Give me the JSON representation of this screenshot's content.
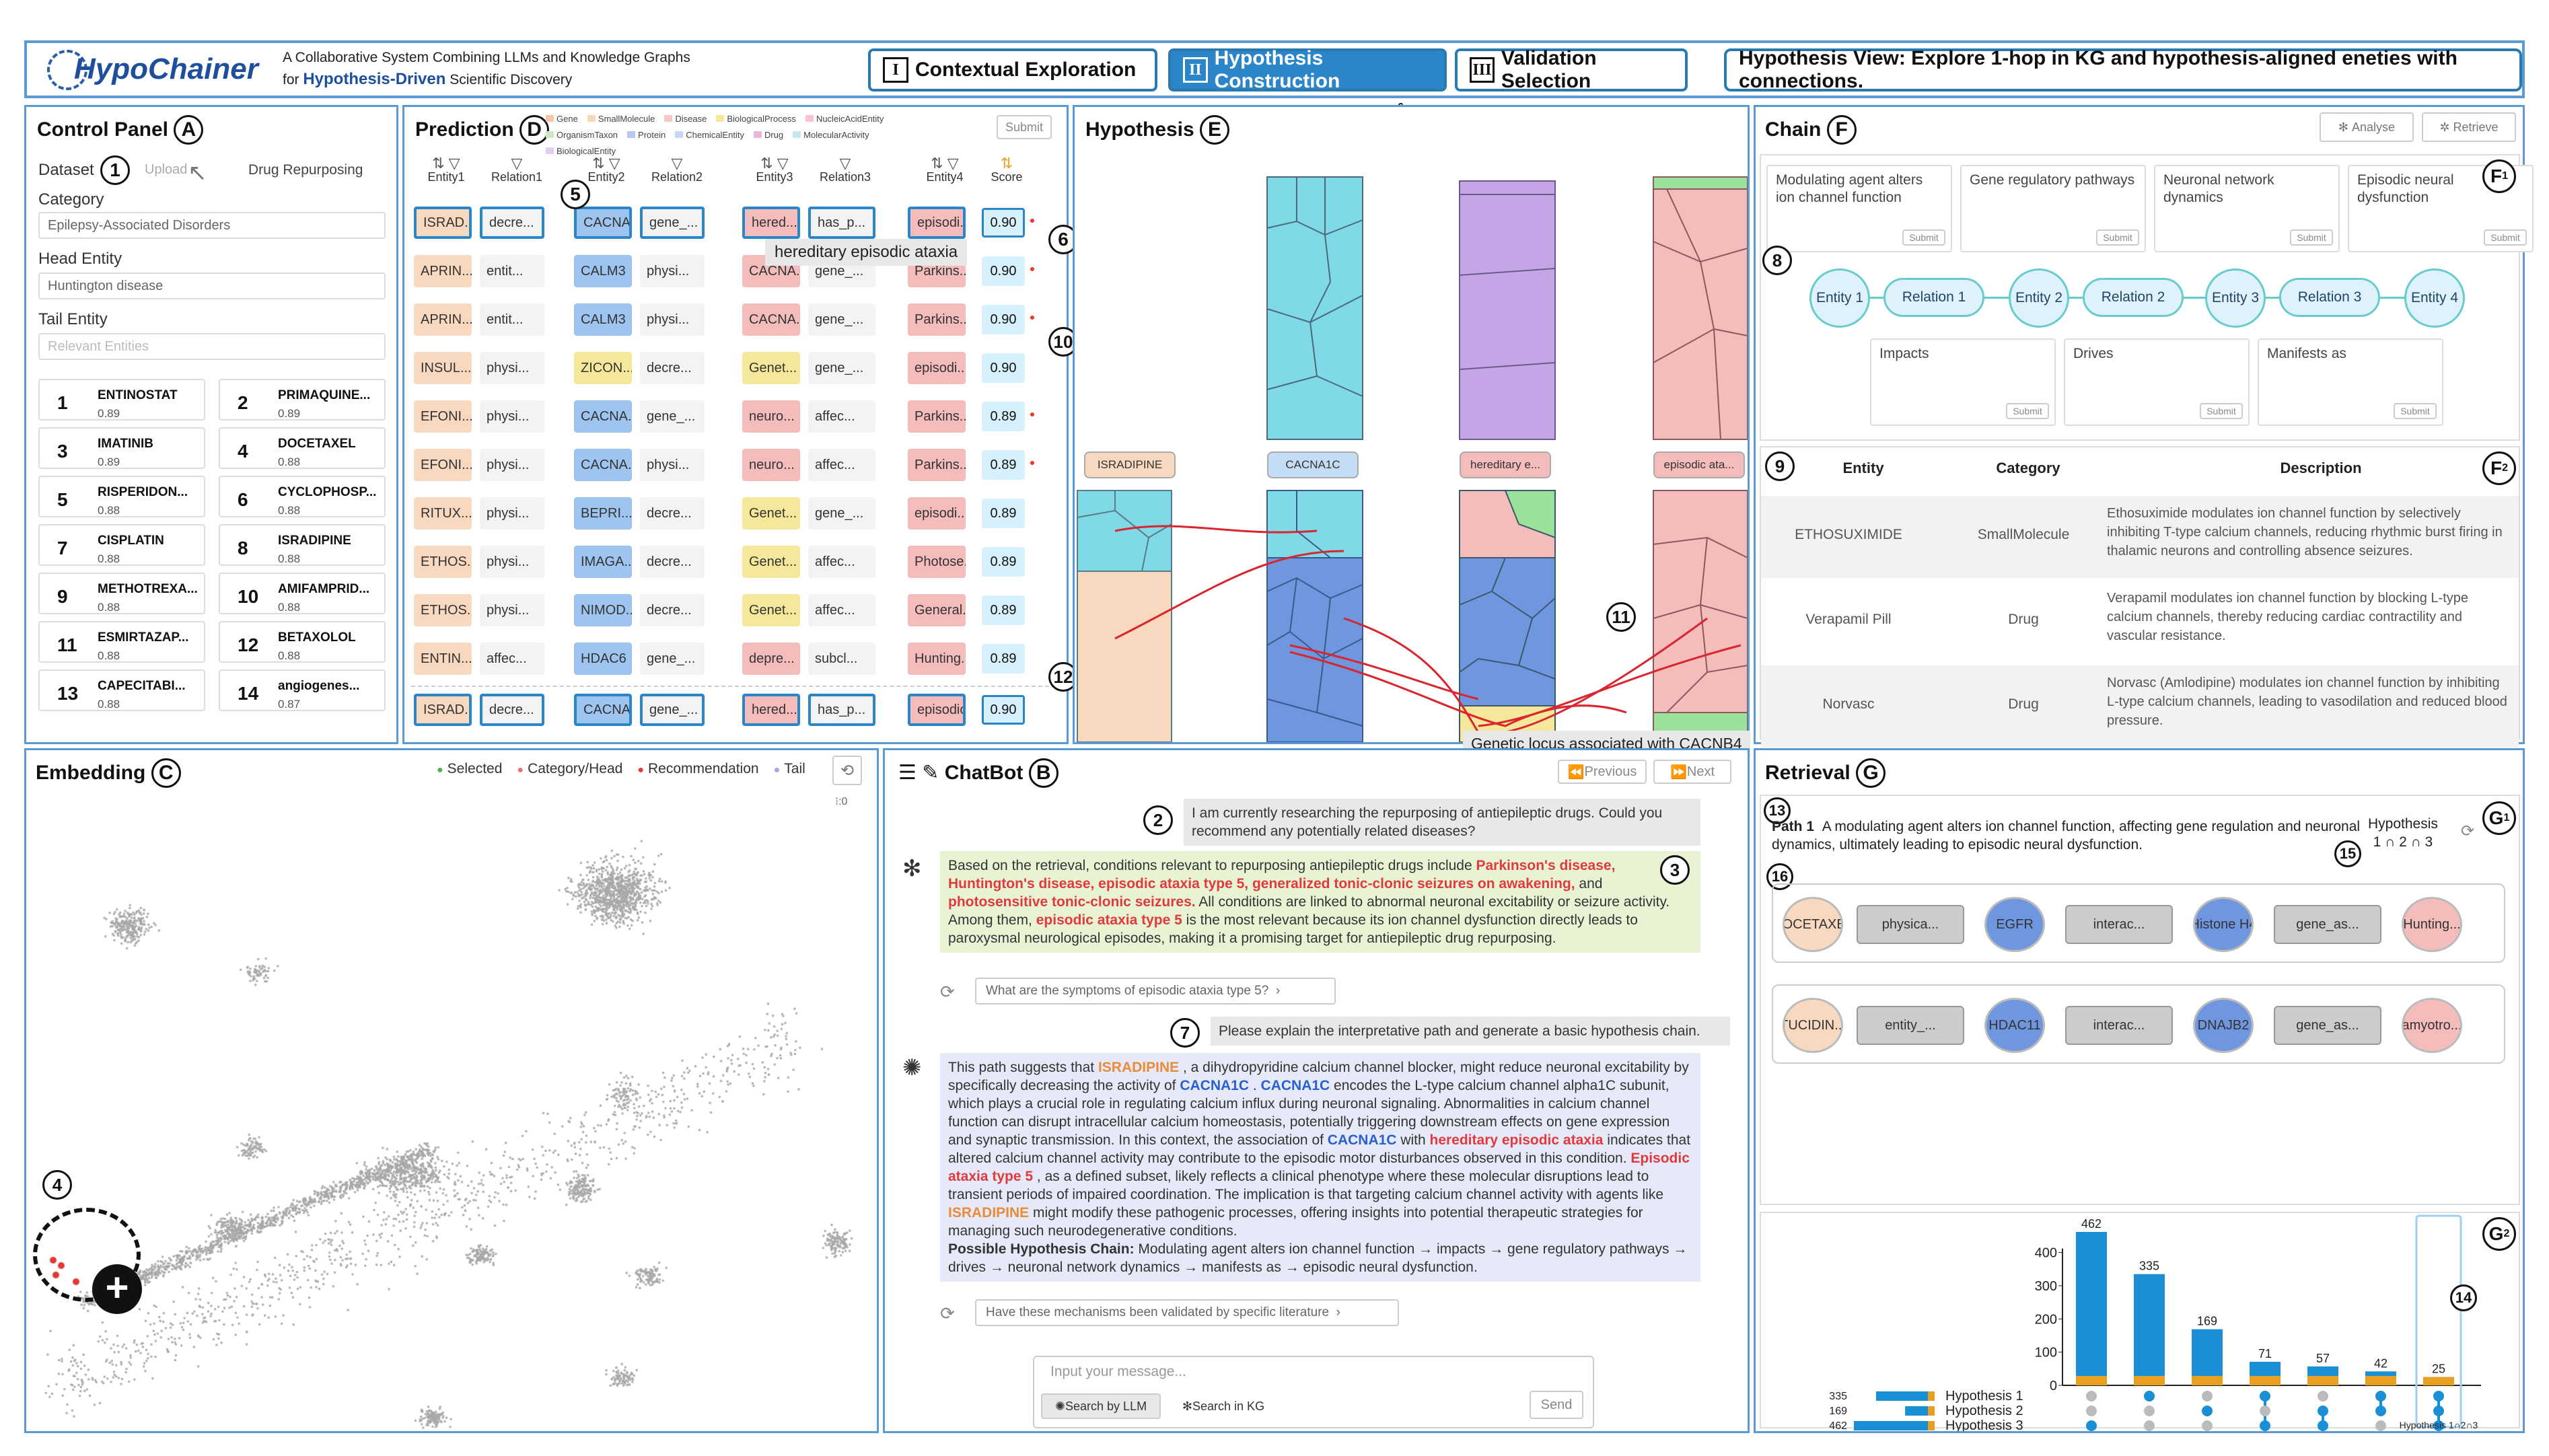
{
  "header": {
    "logo": "HypoChainer",
    "tagline1": "A Collaborative System Combining LLMs and Knowledge Graphs",
    "tagline2_prefix": "for ",
    "tagline2_bold": "Hypothesis-Driven",
    "tagline2_suffix": " Scientific Discovery",
    "tabs": [
      {
        "num": "I",
        "label": "Contextual Exploration"
      },
      {
        "num": "II",
        "label": "Hypothesis Construction"
      },
      {
        "num": "III",
        "label": "Validation Selection"
      }
    ],
    "view_info": "Hypothesis View: Explore 1-hop in KG and hypothesis-aligned eneties with connections."
  },
  "control": {
    "title": "Control Panel",
    "badge": "A",
    "dataset_label": "Dataset",
    "dataset_num": "1",
    "upload": "Upload",
    "dataset_value": "Drug Repurposing",
    "category_label": "Category",
    "category_value": "Epilepsy-Associated Disorders",
    "head_label": "Head Entity",
    "head_value": "Huntington disease",
    "tail_label": "Tail Entity",
    "tail_placeholder": "Relevant Entities",
    "drugs": [
      {
        "rank": "1",
        "name": "ENTINOSTAT",
        "score": "0.89"
      },
      {
        "rank": "2",
        "name": "PRIMAQUINE...",
        "score": "0.89"
      },
      {
        "rank": "3",
        "name": "IMATINIB",
        "score": "0.89"
      },
      {
        "rank": "4",
        "name": "DOCETAXEL",
        "score": "0.88"
      },
      {
        "rank": "5",
        "name": "RISPERIDON...",
        "score": "0.88"
      },
      {
        "rank": "6",
        "name": "CYCLOPHOSP...",
        "score": "0.88"
      },
      {
        "rank": "7",
        "name": "CISPLATIN",
        "score": "0.88"
      },
      {
        "rank": "8",
        "name": "ISRADIPINE",
        "score": "0.88"
      },
      {
        "rank": "9",
        "name": "METHOTREXA...",
        "score": "0.88"
      },
      {
        "rank": "10",
        "name": "AMIFAMPRID...",
        "score": "0.88"
      },
      {
        "rank": "11",
        "name": "ESMIRTAZAP...",
        "score": "0.88"
      },
      {
        "rank": "12",
        "name": "BETAXOLOL",
        "score": "0.88"
      },
      {
        "rank": "13",
        "name": "CAPECITABI...",
        "score": "0.88"
      },
      {
        "rank": "14",
        "name": "angiogenes...",
        "score": "0.87"
      }
    ]
  },
  "prediction": {
    "title": "Prediction",
    "badge": "D",
    "legend": [
      "Gene",
      "SmallMolecule",
      "Disease",
      "BiologicalProcess",
      "NucleicAcidEntity",
      "OrganismTaxon",
      "Protein",
      "ChemicalEntity",
      "Drug",
      "MolecularActivity",
      "BiologicalEntity"
    ],
    "legend_colors": [
      "#f5c6a5",
      "#f5d9b5",
      "#f8c8c8",
      "#f5e8a0",
      "#f7c3d8",
      "#d0e8c0",
      "#b8c8f0",
      "#c8d8f0",
      "#e8b8d8",
      "#c8e8f0",
      "#e0d0f0"
    ],
    "submit": "Submit",
    "columns": [
      "Entity1",
      "Relation1",
      "Entity2",
      "Relation2",
      "Entity3",
      "Relation3",
      "Entity4",
      "Score"
    ],
    "tooltip": "hereditary episodic ataxia",
    "num5": "5",
    "num6": "6",
    "num10": "10",
    "num12": "12",
    "rows": [
      [
        "ISRAD...",
        "decre...",
        "CACNA...",
        "gene_...",
        "hered...",
        "has_p...",
        "episodi...",
        "0.90"
      ],
      [
        "APRIN...",
        "entit...",
        "CALM3",
        "physi...",
        "CACNA...",
        "gene_...",
        "Parkins...",
        "0.90"
      ],
      [
        "APRIN...",
        "entit...",
        "CALM3",
        "physi...",
        "CACNA...",
        "gene_...",
        "Parkins...",
        "0.90"
      ],
      [
        "INSUL...",
        "physi...",
        "ZICON...",
        "decre...",
        "Genet...",
        "gene_...",
        "episodi...",
        "0.90"
      ],
      [
        "EFONI...",
        "physi...",
        "CACNA...",
        "gene_...",
        "neuro...",
        "affec...",
        "Parkins...",
        "0.89"
      ],
      [
        "EFONI...",
        "physi...",
        "CACNA...",
        "physi...",
        "neuro...",
        "affec...",
        "Parkins...",
        "0.89"
      ],
      [
        "RITUX...",
        "physi...",
        "BEPRI...",
        "decre...",
        "Genet...",
        "gene_...",
        "episodi...",
        "0.89"
      ],
      [
        "ETHOS...",
        "physi...",
        "IMAGA...",
        "decre...",
        "Genet...",
        "affec...",
        "Photose...",
        "0.89"
      ],
      [
        "ETHOS...",
        "physi...",
        "NIMOD...",
        "decre...",
        "Genet...",
        "affec...",
        "General...",
        "0.89"
      ],
      [
        "ENTIN...",
        "affec...",
        "HDAC6",
        "gene_...",
        "depre...",
        "subcl...",
        "Hunting...",
        "0.89"
      ]
    ],
    "pinned": [
      "ISRAD...",
      "decre...",
      "CACNA...",
      "gene_...",
      "hered...",
      "has_p...",
      "episodic ...",
      "0.90"
    ]
  },
  "hypothesis": {
    "title": "Hypothesis",
    "badge": "E",
    "nodes": [
      "ISRADIPINE",
      "CACNA1C",
      "hereditary e...",
      "episodic ata..."
    ],
    "num11": "11",
    "tooltip": "Genetic locus associated with CACNB4"
  },
  "chain": {
    "title": "Chain",
    "badge": "F",
    "analyse": "Analyse",
    "retrieve": "Retrieve",
    "f1": "F",
    "f1sub": "1",
    "f2": "F",
    "f2sub": "2",
    "num8": "8",
    "num9": "9",
    "cards_top": [
      "Modulating agent alters ion channel function",
      "Gene regulatory pathways",
      "Neuronal network dynamics",
      "Episodic neural dysfunction"
    ],
    "cards_bottom": [
      "Impacts",
      "Drives",
      "Manifests as"
    ],
    "submit": "Submit",
    "chain_nodes": [
      "Entity 1",
      "Relation 1",
      "Entity 2",
      "Relation 2",
      "Entity 3",
      "Relation 3",
      "Entity 4"
    ],
    "table_headers": [
      "Entity",
      "Category",
      "Description"
    ],
    "table_rows": [
      {
        "entity": "ETHOSUXIMIDE",
        "category": "SmallMolecule",
        "desc": "Ethosuximide modulates ion channel function by selectively inhibiting T-type calcium channels, reducing rhythmic burst firing in thalamic neurons and controlling absence seizures."
      },
      {
        "entity": "Verapamil Pill",
        "category": "Drug",
        "desc": "Verapamil modulates ion channel function by blocking L-type calcium channels, thereby reducing cardiac contractility and vascular resistance."
      },
      {
        "entity": "Norvasc",
        "category": "Drug",
        "desc": "Norvasc (Amlodipine) modulates ion channel function by inhibiting L-type calcium channels, leading to vasodilation and reduced blood pressure."
      }
    ]
  },
  "embedding": {
    "title": "Embedding",
    "badge": "C",
    "legend": [
      "Selected",
      "Category/Head",
      "Recommendation",
      "Tail"
    ],
    "legend_colors": [
      "#4caf50",
      "#e57373",
      "#e53935",
      "#b39ddb"
    ],
    "num4": "4",
    "zero": "0"
  },
  "chatbot": {
    "title": "ChatBot",
    "badge": "B",
    "prev": "Previous",
    "next": "Next",
    "num2": "2",
    "num3": "3",
    "num7": "7",
    "user1": "I am currently researching the repurposing of antiepileptic drugs. Could you recommend any potentially related diseases?",
    "bot1_a": "Based on the retrieval, conditions relevant to repurposing antiepileptic drugs include ",
    "bot1_red1": "Parkinson's disease, Huntington's disease, episodic ataxia type 5, generalized tonic-clonic seizures on awakening,",
    "bot1_b": " and ",
    "bot1_red2": "photosensitive tonic-clonic seizures.",
    "bot1_c": " All conditions are linked to abnormal neuronal excitability or seizure activity.",
    "bot1_d": "Among them, ",
    "bot1_red3": "episodic ataxia type 5",
    "bot1_e": " is the most relevant because its ion channel dysfunction directly leads to paroxysmal neurological episodes, making it a promising target for antiepileptic drug repurposing.",
    "suggest1": "What are the symptoms of episodic ataxia type 5?",
    "user2": "Please explain the interpretative path and generate a basic hypothesis chain.",
    "bot2_1": "This path suggests that ",
    "bot2_isr": "ISRADIPINE",
    "bot2_2": " , a dihydropyridine calcium channel blocker, might reduce neuronal excitability by specifically decreasing the activity of ",
    "bot2_cac": "CACNA1C",
    "bot2_3": " . ",
    "bot2_4": " encodes the L-type calcium channel alpha1C subunit, which plays a crucial role in regulating calcium influx during neuronal signaling. Abnormalities in calcium channel function can disrupt intracellular calcium homeostasis, potentially triggering downstream effects on gene expression and synaptic transmission. In this context, the association of ",
    "bot2_5": " with ",
    "bot2_hea": "hereditary episodic ataxia",
    "bot2_6": " indicates that altered calcium channel activity may contribute to the episodic motor disturbances observed in this condition. ",
    "bot2_eat": "Episodic ataxia type 5",
    "bot2_7": " , as a defined subset, likely reflects a clinical phenotype where these molecular disruptions lead to transient periods of impaired coordination. The implication is that targeting calcium channel activity with agents like ",
    "bot2_8": " might modify these pathogenic processes, offering insights into potential therapeutic strategies for managing such neurodegenerative conditions.",
    "bot2_chain_label": "Possible Hypothesis Chain:",
    "bot2_chain": " Modulating agent alters ion channel function → impacts → gene regulatory pathways → drives → neuronal network dynamics → manifests as → episodic neural dysfunction.",
    "suggest2": "Have these mechanisms been validated by specific literature",
    "input_placeholder": "Input your message...",
    "search_llm": "Search by LLM",
    "search_kg": "Search in KG",
    "send": "Send"
  },
  "retrieval": {
    "title": "Retrieval",
    "badge": "G",
    "g1": "G",
    "g1sub": "1",
    "g2": "G",
    "g2sub": "2",
    "num13": "13",
    "num14": "14",
    "num15": "15",
    "num16": "16",
    "path_label": "Path 1",
    "path_text": "A modulating agent alters ion channel function, affecting gene regulation and neuronal dynamics, ultimately leading to episodic neural dysfunction.",
    "hyp_label": "Hypothesis",
    "hyp_sub": "1 ∩ 2 ∩ 3",
    "path_rows": [
      [
        "DOCETAXEL",
        "physica...",
        "EGFR",
        "interac...",
        "Histone H4",
        "gene_as...",
        "Hunting..."
      ],
      [
        "TUCIDIN...",
        "entity_...",
        "HDAC11",
        "interac...",
        "DNAJB2",
        "gene_as...",
        "amyotro..."
      ]
    ],
    "upset_sets": [
      "Hypothesis 1",
      "Hypothesis 2",
      "Hypothesis 3"
    ],
    "upset_set_sizes": [
      335,
      169,
      462
    ],
    "upset_footer": "Hypothesis 1∩2∩3"
  },
  "chart_data": {
    "type": "bar",
    "title": "",
    "categories": [
      "3",
      "1",
      "2",
      "1∩3",
      "2∩3",
      "1∩2",
      "1∩2∩3"
    ],
    "values": [
      462,
      335,
      169,
      71,
      57,
      42,
      25
    ],
    "ylim": [
      0,
      462
    ],
    "yticks": [
      0,
      100,
      200,
      300,
      400
    ],
    "sets": [
      "Hypothesis 1",
      "Hypothesis 2",
      "Hypothesis 3"
    ],
    "set_sizes": [
      335,
      169,
      462
    ],
    "membership": [
      [
        0,
        0,
        1
      ],
      [
        1,
        0,
        0
      ],
      [
        0,
        1,
        0
      ],
      [
        1,
        0,
        1
      ],
      [
        0,
        1,
        1
      ],
      [
        1,
        1,
        0
      ],
      [
        1,
        1,
        1
      ]
    ],
    "colors": {
      "bar": "#1b8fd6",
      "base": "#e8a020",
      "dot_on": "#1b8fd6",
      "dot_off": "#bbb"
    }
  }
}
